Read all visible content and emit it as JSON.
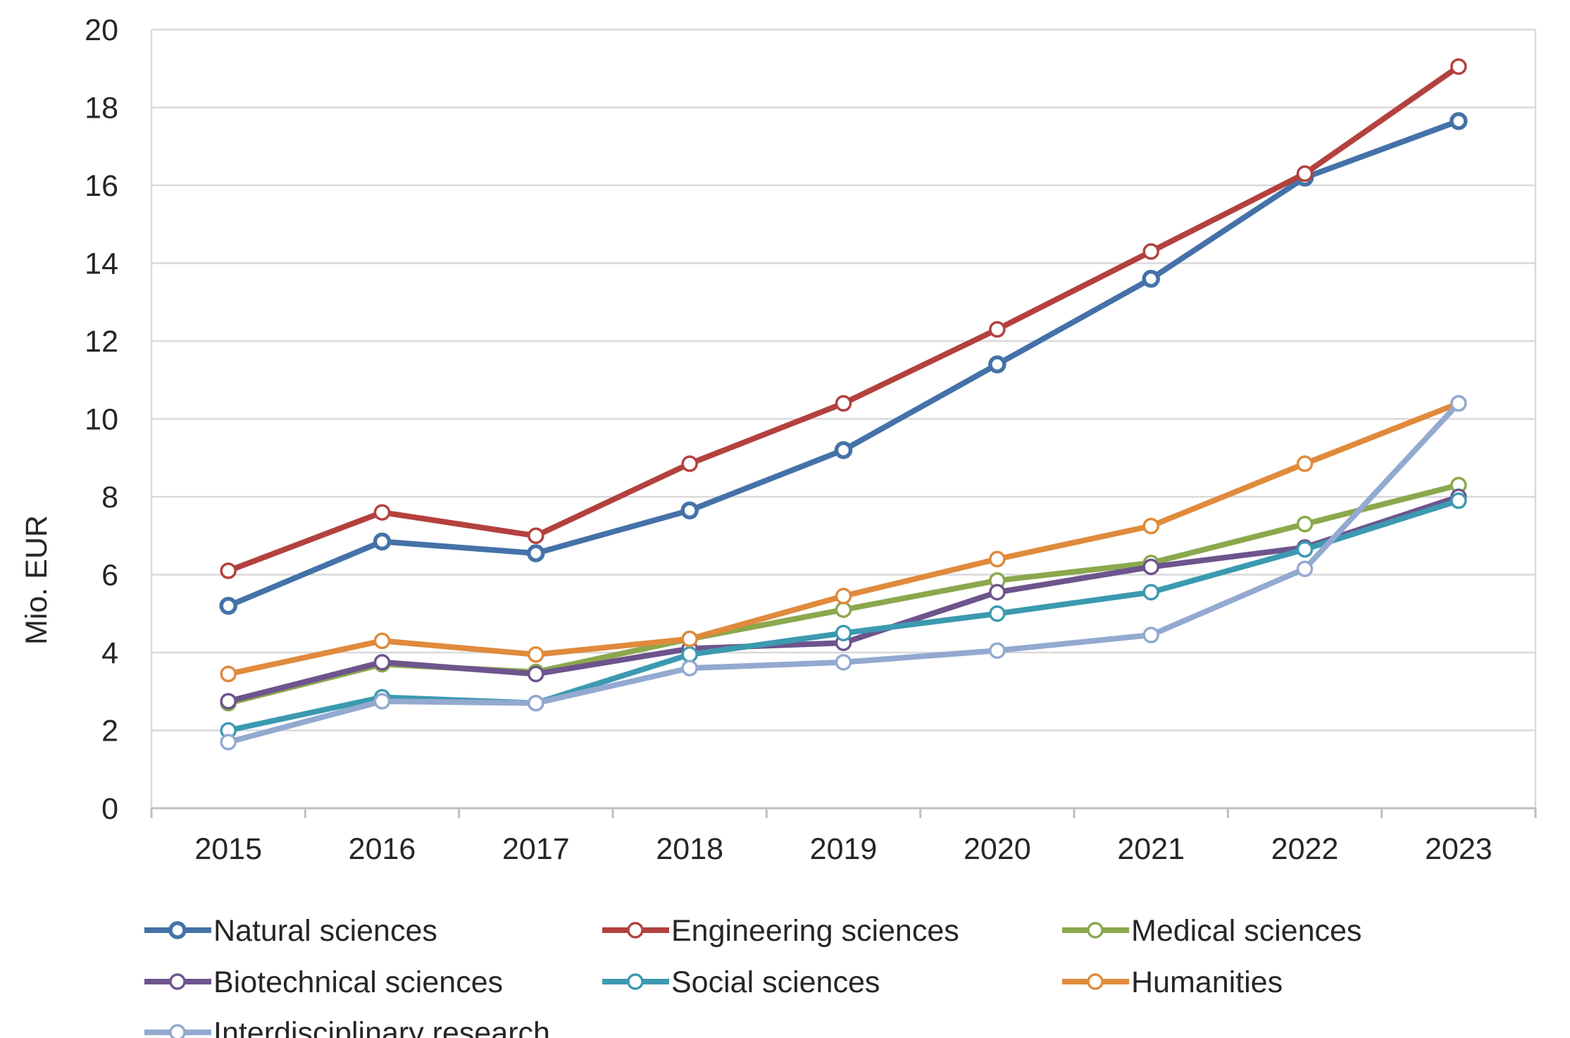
{
  "chart_data": {
    "type": "line",
    "title": "",
    "xlabel": "",
    "ylabel": "Mio. EUR",
    "categories": [
      "2015",
      "2016",
      "2017",
      "2018",
      "2019",
      "2020",
      "2021",
      "2022",
      "2023"
    ],
    "ylim": [
      0,
      20
    ],
    "yticks": [
      0,
      2,
      4,
      6,
      8,
      10,
      12,
      14,
      16,
      18,
      20
    ],
    "grid": "horizontal",
    "legend_position": "bottom",
    "series": [
      {
        "name": "Natural sciences",
        "color": "#4472a8",
        "values": [
          5.2,
          6.85,
          6.55,
          7.65,
          9.2,
          11.4,
          13.6,
          16.2,
          17.65
        ]
      },
      {
        "name": "Engineering sciences",
        "color": "#b3413e",
        "values": [
          6.1,
          7.6,
          7.0,
          8.85,
          10.4,
          12.3,
          14.3,
          16.3,
          19.05
        ]
      },
      {
        "name": "Medical sciences",
        "color": "#8ba84d",
        "values": [
          2.7,
          3.7,
          3.5,
          4.35,
          5.1,
          5.85,
          6.3,
          7.3,
          8.3
        ]
      },
      {
        "name": "Biotechnical sciences",
        "color": "#6e548d",
        "values": [
          2.75,
          3.75,
          3.45,
          4.1,
          4.25,
          5.55,
          6.2,
          6.7,
          8.0
        ]
      },
      {
        "name": "Social sciences",
        "color": "#3b9ab0",
        "values": [
          2.0,
          2.85,
          2.7,
          3.95,
          4.5,
          5.0,
          5.55,
          6.65,
          7.9
        ]
      },
      {
        "name": "Humanities",
        "color": "#e08a3c",
        "values": [
          3.45,
          4.3,
          3.95,
          4.35,
          5.45,
          6.4,
          7.25,
          8.85,
          10.4
        ]
      },
      {
        "name": "Interdisciplinary research",
        "color": "#93a9d0",
        "values": [
          1.7,
          2.75,
          2.7,
          3.6,
          3.75,
          4.05,
          4.45,
          6.15,
          10.4
        ]
      }
    ]
  }
}
